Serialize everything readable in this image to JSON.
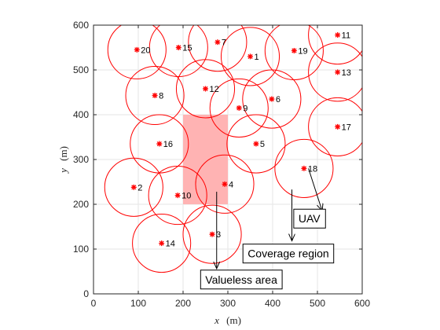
{
  "chart_data": {
    "type": "scatter",
    "xlabel_var": "x",
    "xlabel_unit": "(m)",
    "ylabel_var": "y",
    "ylabel_unit": "(m)",
    "xlim": [
      0,
      600
    ],
    "ylim": [
      0,
      600
    ],
    "xticks": [
      0,
      100,
      200,
      300,
      400,
      500,
      600
    ],
    "yticks": [
      0,
      100,
      200,
      300,
      400,
      500,
      600
    ],
    "grid": true,
    "coverage_radius": 65,
    "marker": "*",
    "marker_color": "#ff0000",
    "circle_color": "#ff0000",
    "valueless_area": {
      "x": [
        200,
        300
      ],
      "y": [
        200,
        400
      ],
      "color": "#ffb3b3"
    },
    "points": [
      {
        "label": "1",
        "x": 350,
        "y": 530
      },
      {
        "label": "2",
        "x": 90,
        "y": 238
      },
      {
        "label": "3",
        "x": 265,
        "y": 133
      },
      {
        "label": "4",
        "x": 293,
        "y": 245
      },
      {
        "label": "5",
        "x": 363,
        "y": 335
      },
      {
        "label": "6",
        "x": 398,
        "y": 435
      },
      {
        "label": "7",
        "x": 277,
        "y": 562
      },
      {
        "label": "8",
        "x": 137,
        "y": 443
      },
      {
        "label": "9",
        "x": 325,
        "y": 415
      },
      {
        "label": "10",
        "x": 188,
        "y": 220
      },
      {
        "label": "11",
        "x": 545,
        "y": 578
      },
      {
        "label": "12",
        "x": 250,
        "y": 458
      },
      {
        "label": "13",
        "x": 545,
        "y": 495
      },
      {
        "label": "14",
        "x": 152,
        "y": 113
      },
      {
        "label": "15",
        "x": 190,
        "y": 550
      },
      {
        "label": "16",
        "x": 147,
        "y": 335
      },
      {
        "label": "17",
        "x": 545,
        "y": 373
      },
      {
        "label": "18",
        "x": 470,
        "y": 280
      },
      {
        "label": "19",
        "x": 448,
        "y": 543
      },
      {
        "label": "20",
        "x": 97,
        "y": 545
      }
    ],
    "annotations": [
      {
        "text": "UAV",
        "box_x": 482,
        "box_y": 168,
        "arrow_from": [
          480,
          280
        ],
        "arrow_to": [
          510,
          187
        ]
      },
      {
        "text": "Coverage region",
        "box_x": 435,
        "box_y": 90,
        "arrow_from": [
          443,
          233
        ],
        "arrow_to": [
          443,
          120
        ]
      },
      {
        "text": "Valueless area",
        "box_x": 330,
        "box_y": 32,
        "arrow_from": [
          275,
          228
        ],
        "arrow_to": [
          275,
          58
        ]
      }
    ]
  }
}
